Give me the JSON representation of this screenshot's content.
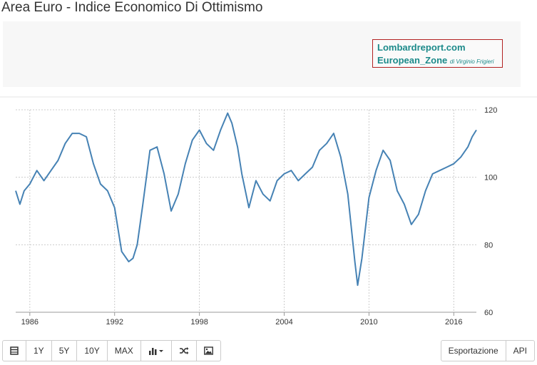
{
  "title": "Area Euro - Indice Economico Di Ottimismo",
  "badge": {
    "line1": "Lombardreport.com",
    "line2": "European_Zone",
    "line2_sub": "di Virginio Frigieri"
  },
  "toolbar": {
    "table_icon": "table-icon",
    "ranges": [
      "1Y",
      "5Y",
      "10Y",
      "MAX"
    ],
    "chart_type_icon": "bar-chart-icon",
    "shuffle_icon": "shuffle-icon",
    "image_icon": "image-icon",
    "export_label": "Esportazione",
    "api_label": "API"
  },
  "colors": {
    "line": "#4682b4",
    "grid": "#cccccc",
    "text": "#333333",
    "badge_border": "#b22222",
    "badge_text": "#1c8a8a"
  },
  "chart_data": {
    "type": "line",
    "title": "",
    "xlabel": "",
    "ylabel": "",
    "x_ticks": [
      "1986",
      "1992",
      "1998",
      "2004",
      "2010",
      "2016"
    ],
    "y_ticks": [
      "60",
      "80",
      "100",
      "120"
    ],
    "ylim": [
      60,
      120
    ],
    "xlim": [
      1985.0,
      2017.6
    ],
    "y_axis_position": "right",
    "grid": true,
    "series": [
      {
        "x": [
          1985.0,
          1985.3,
          1985.6,
          1986.0,
          1986.5,
          1987.0,
          1987.5,
          1988.0,
          1988.5,
          1989.0,
          1989.5,
          1990.0,
          1990.5,
          1991.0,
          1991.5,
          1992.0,
          1992.5,
          1993.0,
          1993.3,
          1993.6,
          1994.0,
          1994.5,
          1995.0,
          1995.5,
          1996.0,
          1996.5,
          1997.0,
          1997.5,
          1998.0,
          1998.5,
          1999.0,
          1999.5,
          2000.0,
          2000.3,
          2000.7,
          2001.0,
          2001.5,
          2002.0,
          2002.5,
          2003.0,
          2003.5,
          2004.0,
          2004.5,
          2005.0,
          2005.5,
          2006.0,
          2006.5,
          2007.0,
          2007.5,
          2008.0,
          2008.5,
          2009.0,
          2009.2,
          2009.5,
          2010.0,
          2010.5,
          2011.0,
          2011.5,
          2012.0,
          2012.5,
          2013.0,
          2013.5,
          2014.0,
          2014.5,
          2015.0,
          2015.5,
          2016.0,
          2016.5,
          2017.0,
          2017.3,
          2017.6
        ],
        "y": [
          96,
          92,
          96,
          98,
          102,
          99,
          102,
          105,
          110,
          113,
          113,
          112,
          104,
          98,
          96,
          91,
          78,
          75,
          76,
          80,
          92,
          108,
          109,
          101,
          90,
          95,
          104,
          111,
          114,
          110,
          108,
          114,
          119,
          116,
          109,
          101,
          91,
          99,
          95,
          93,
          99,
          101,
          102,
          99,
          101,
          103,
          108,
          110,
          113,
          106,
          95,
          75,
          68,
          76,
          94,
          102,
          108,
          105,
          96,
          92,
          86,
          89,
          96,
          101,
          102,
          103,
          104,
          106,
          109,
          112,
          114
        ]
      }
    ]
  }
}
